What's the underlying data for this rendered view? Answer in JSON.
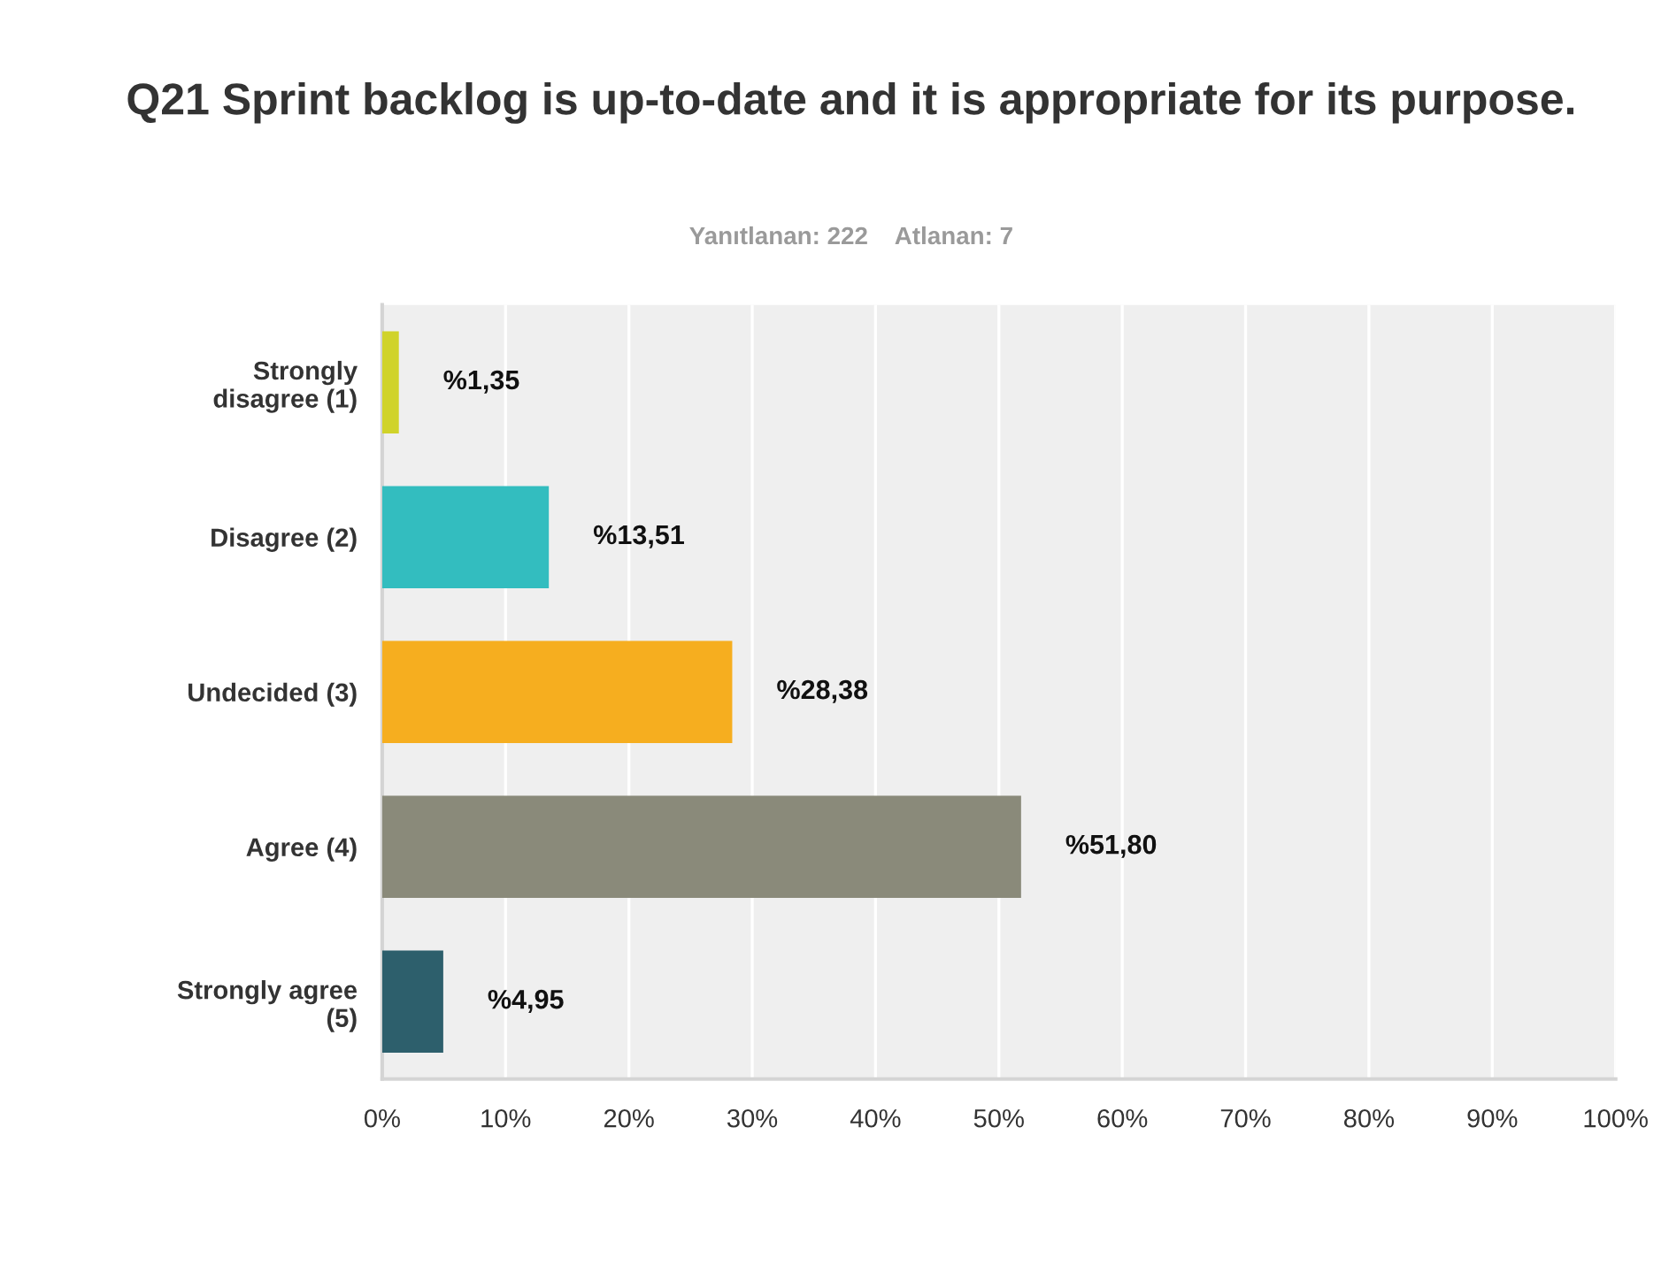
{
  "chart_data": {
    "type": "bar",
    "orientation": "horizontal",
    "title": "Q21 Sprint backlog is up-to-date and it is appropriate for its purpose.",
    "subtitle": "Yanıtlanan: 222    Atlanan: 7",
    "categories": [
      "Strongly\ndisagree (1)",
      "Disagree (2)",
      "Undecided (3)",
      "Agree (4)",
      "Strongly agree\n(5)"
    ],
    "values": [
      1.35,
      13.51,
      28.38,
      51.8,
      4.95
    ],
    "colors": [
      "#d0d32a",
      "#33bdbf",
      "#f6ae1f",
      "#8a8a7a",
      "#2d5f6c"
    ],
    "value_labels": [
      "%1,35",
      "%13,51",
      "%28,38",
      "%51,80",
      "%4,95"
    ],
    "xlim": [
      0,
      100
    ],
    "xticks": [
      {
        "value": 0,
        "label": "0%"
      },
      {
        "value": 10,
        "label": "10%"
      },
      {
        "value": 20,
        "label": "20%"
      },
      {
        "value": 30,
        "label": "30%"
      },
      {
        "value": 40,
        "label": "40%"
      },
      {
        "value": 50,
        "label": "50%"
      },
      {
        "value": 60,
        "label": "60%"
      },
      {
        "value": 70,
        "label": "70%"
      },
      {
        "value": 80,
        "label": "80%"
      },
      {
        "value": 90,
        "label": "90%"
      },
      {
        "value": 100,
        "label": "100%"
      }
    ],
    "grid": "x",
    "legend": false
  }
}
